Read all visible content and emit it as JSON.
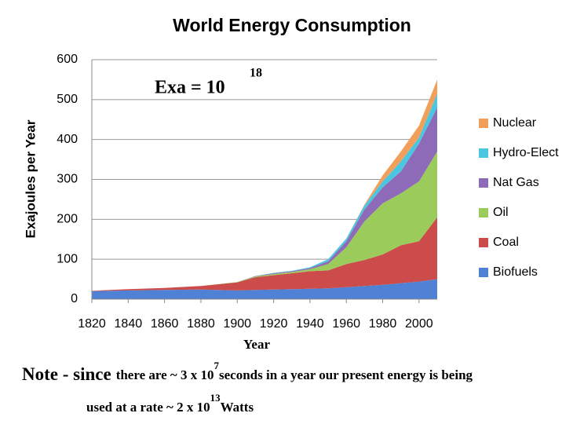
{
  "chart_data": {
    "type": "stacked_area",
    "title": "World Energy Consumption",
    "x_label": "Year",
    "y_label": "Exajoules per Year",
    "x": [
      1820,
      1840,
      1860,
      1880,
      1900,
      1910,
      1920,
      1930,
      1940,
      1950,
      1960,
      1970,
      1980,
      1990,
      2000,
      2010
    ],
    "series": [
      {
        "name": "Biofuels",
        "color": "#4f81d4",
        "values": [
          20,
          22,
          23,
          24,
          22,
          23,
          24,
          25,
          26,
          27,
          30,
          33,
          36,
          40,
          44,
          50
        ]
      },
      {
        "name": "Coal",
        "color": "#cc4b4b",
        "values": [
          1,
          3,
          5,
          9,
          20,
          32,
          36,
          40,
          44,
          45,
          58,
          65,
          76,
          95,
          101,
          155
        ]
      },
      {
        "name": "Oil",
        "color": "#9bcb5a",
        "values": [
          0,
          0,
          0,
          0,
          1,
          2,
          3,
          3,
          5,
          16,
          42,
          97,
          128,
          130,
          150,
          165
        ]
      },
      {
        "name": "Nat Gas",
        "color": "#8e6bb8",
        "values": [
          0,
          0,
          0,
          0,
          0,
          1,
          2,
          2,
          3,
          7,
          15,
          30,
          40,
          55,
          95,
          110
        ]
      },
      {
        "name": "Hydro-Elect",
        "color": "#4bc6e0",
        "values": [
          0,
          0,
          0,
          0,
          0,
          0,
          1,
          1,
          2,
          5,
          7,
          10,
          15,
          25,
          15,
          35
        ]
      },
      {
        "name": "Nuclear",
        "color": "#f0a05a",
        "values": [
          0,
          0,
          0,
          0,
          0,
          0,
          0,
          0,
          0,
          0,
          0,
          2,
          15,
          25,
          30,
          35
        ]
      }
    ],
    "xlim": [
      1820,
      2010
    ],
    "ylim": [
      0,
      600
    ],
    "xticks": [
      1820,
      1840,
      1860,
      1880,
      1900,
      1920,
      1940,
      1960,
      1980,
      2000
    ],
    "yticks": [
      0,
      100,
      200,
      300,
      400,
      500,
      600
    ],
    "grid": true,
    "legend": "right",
    "annotations": {
      "exa": "Exa  =  10",
      "exa_power": "18",
      "note_bold": "Note - since",
      "note_1": "there are ~ 3 x 10",
      "note_power_1": "7",
      "note_2": "seconds in a year our present energy is being",
      "note_3": "used at a rate ~ 2 x 10",
      "note_power_2": "13",
      "note_4": "Watts"
    }
  }
}
